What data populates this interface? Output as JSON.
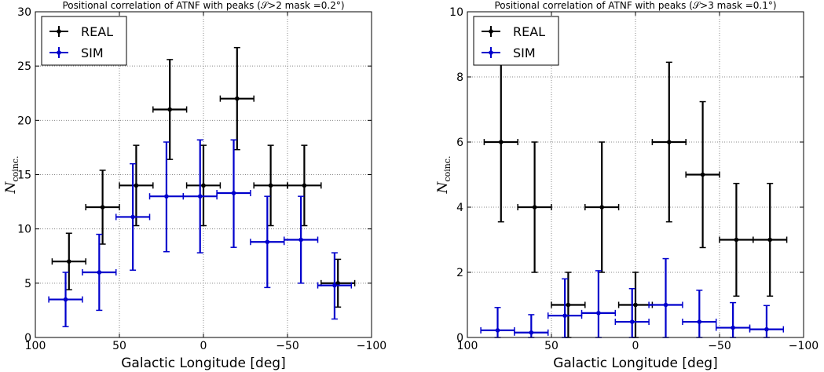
{
  "colors": {
    "real": "#000000",
    "sim": "#0000cc",
    "grid": "#888888"
  },
  "chart_data": [
    {
      "type": "scatter",
      "title": "Positional correlation of ATNF with peaks (𝒮>2 mask =0.2°)",
      "xlabel": "Galactic Longitude [deg]",
      "ylabel": "N",
      "ylabel_sub": "coinc.",
      "xlim": [
        100,
        -100
      ],
      "ylim": [
        0,
        30
      ],
      "xticks": [
        100,
        50,
        0,
        -50,
        -100
      ],
      "xtick_labels": [
        "100",
        "50",
        "0",
        "−50",
        "−100"
      ],
      "yticks": [
        0,
        5,
        10,
        15,
        20,
        25,
        30
      ],
      "ytick_labels": [
        "0",
        "5",
        "10",
        "15",
        "20",
        "25",
        "30"
      ],
      "grid": true,
      "legend_position": "top-left",
      "series": [
        {
          "name": "REAL",
          "color": "#000000",
          "points": [
            {
              "x": 80,
              "y": 7,
              "xerr": 10,
              "ylo": 4.4,
              "yhi": 9.6
            },
            {
              "x": 60,
              "y": 12,
              "xerr": 10,
              "ylo": 8.6,
              "yhi": 15.4
            },
            {
              "x": 40,
              "y": 14,
              "xerr": 10,
              "ylo": 10.3,
              "yhi": 17.7
            },
            {
              "x": 20,
              "y": 21,
              "xerr": 10,
              "ylo": 16.4,
              "yhi": 25.6
            },
            {
              "x": 0,
              "y": 14,
              "xerr": 10,
              "ylo": 10.3,
              "yhi": 17.7
            },
            {
              "x": -20,
              "y": 22,
              "xerr": 10,
              "ylo": 17.3,
              "yhi": 26.7
            },
            {
              "x": -40,
              "y": 14,
              "xerr": 10,
              "ylo": 10.3,
              "yhi": 17.7
            },
            {
              "x": -60,
              "y": 14,
              "xerr": 10,
              "ylo": 10.3,
              "yhi": 17.7
            },
            {
              "x": -80,
              "y": 5,
              "xerr": 10,
              "ylo": 2.8,
              "yhi": 7.2
            }
          ]
        },
        {
          "name": "SIM",
          "color": "#0000cc",
          "points": [
            {
              "x": 82,
              "y": 3.5,
              "xerr": 10,
              "ylo": 1.0,
              "yhi": 6.0
            },
            {
              "x": 62,
              "y": 6,
              "xerr": 10,
              "ylo": 2.5,
              "yhi": 9.5
            },
            {
              "x": 42,
              "y": 11.1,
              "xerr": 10,
              "ylo": 6.2,
              "yhi": 16.0
            },
            {
              "x": 22,
              "y": 13,
              "xerr": 10,
              "ylo": 7.9,
              "yhi": 18.0
            },
            {
              "x": 2,
              "y": 13,
              "xerr": 10,
              "ylo": 7.8,
              "yhi": 18.2
            },
            {
              "x": -18,
              "y": 13.3,
              "xerr": 10,
              "ylo": 8.3,
              "yhi": 18.2
            },
            {
              "x": -38,
              "y": 8.8,
              "xerr": 10,
              "ylo": 4.6,
              "yhi": 13.0
            },
            {
              "x": -58,
              "y": 9.0,
              "xerr": 10,
              "ylo": 5.0,
              "yhi": 13.0
            },
            {
              "x": -78,
              "y": 4.8,
              "xerr": 10,
              "ylo": 1.7,
              "yhi": 7.8
            }
          ]
        }
      ]
    },
    {
      "type": "scatter",
      "title": "Positional correlation of ATNF with peaks (𝒮>3 mask =0.1°)",
      "xlabel": "Galactic Longitude [deg]",
      "ylabel": "N",
      "ylabel_sub": "coinc.",
      "xlim": [
        100,
        -100
      ],
      "ylim": [
        0,
        10
      ],
      "xticks": [
        100,
        50,
        0,
        -50,
        -100
      ],
      "xtick_labels": [
        "100",
        "50",
        "0",
        "−50",
        "−100"
      ],
      "yticks": [
        0,
        2,
        4,
        6,
        8,
        10
      ],
      "ytick_labels": [
        "0",
        "2",
        "4",
        "6",
        "8",
        "10"
      ],
      "grid": true,
      "legend_position": "top-left",
      "series": [
        {
          "name": "REAL",
          "color": "#000000",
          "points": [
            {
              "x": 80,
              "y": 6,
              "xerr": 10,
              "ylo": 3.55,
              "yhi": 8.45
            },
            {
              "x": 60,
              "y": 4,
              "xerr": 10,
              "ylo": 2.0,
              "yhi": 6.0
            },
            {
              "x": 40,
              "y": 1,
              "xerr": 10,
              "ylo": 0.0,
              "yhi": 2.0
            },
            {
              "x": 20,
              "y": 4,
              "xerr": 10,
              "ylo": 2.0,
              "yhi": 6.0
            },
            {
              "x": 0,
              "y": 1,
              "xerr": 10,
              "ylo": 0.0,
              "yhi": 2.0
            },
            {
              "x": -20,
              "y": 6,
              "xerr": 10,
              "ylo": 3.55,
              "yhi": 8.45
            },
            {
              "x": -40,
              "y": 5,
              "xerr": 10,
              "ylo": 2.76,
              "yhi": 7.24
            },
            {
              "x": -60,
              "y": 3,
              "xerr": 10,
              "ylo": 1.27,
              "yhi": 4.73
            },
            {
              "x": -80,
              "y": 3,
              "xerr": 10,
              "ylo": 1.27,
              "yhi": 4.73
            }
          ]
        },
        {
          "name": "SIM",
          "color": "#0000cc",
          "points": [
            {
              "x": 82,
              "y": 0.22,
              "xerr": 10,
              "ylo": 0.0,
              "yhi": 0.92
            },
            {
              "x": 62,
              "y": 0.15,
              "xerr": 10,
              "ylo": 0.0,
              "yhi": 0.7
            },
            {
              "x": 42,
              "y": 0.67,
              "xerr": 10,
              "ylo": 0.0,
              "yhi": 1.8
            },
            {
              "x": 22,
              "y": 0.75,
              "xerr": 10,
              "ylo": 0.0,
              "yhi": 2.05
            },
            {
              "x": 2,
              "y": 0.48,
              "xerr": 10,
              "ylo": 0.0,
              "yhi": 1.5
            },
            {
              "x": -18,
              "y": 1.0,
              "xerr": 10,
              "ylo": 0.0,
              "yhi": 2.42
            },
            {
              "x": -38,
              "y": 0.48,
              "xerr": 10,
              "ylo": 0.0,
              "yhi": 1.45
            },
            {
              "x": -58,
              "y": 0.3,
              "xerr": 10,
              "ylo": 0.0,
              "yhi": 1.07
            },
            {
              "x": -78,
              "y": 0.25,
              "xerr": 10,
              "ylo": 0.0,
              "yhi": 0.98
            }
          ]
        }
      ]
    }
  ]
}
